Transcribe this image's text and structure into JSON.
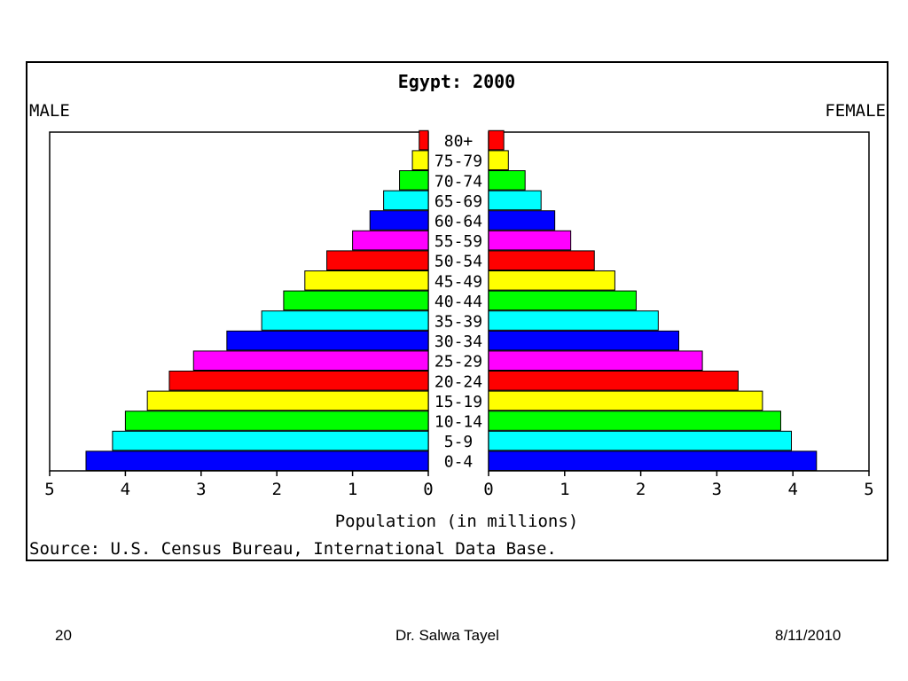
{
  "chart_data": {
    "type": "bar",
    "title": "Egypt: 2000",
    "left_label": "MALE",
    "right_label": "FEMALE",
    "xlabel": "Population (in millions)",
    "source": "Source: U.S. Census Bureau, International Data Base.",
    "xlim": [
      0,
      5
    ],
    "xticks": [
      "5",
      "4",
      "3",
      "2",
      "1",
      "0",
      "0",
      "1",
      "2",
      "3",
      "4",
      "5"
    ],
    "grid": false,
    "categories": [
      "80+",
      "75-79",
      "70-74",
      "65-69",
      "60-64",
      "55-59",
      "50-54",
      "45-49",
      "40-44",
      "35-39",
      "30-34",
      "25-29",
      "20-24",
      "15-19",
      "10-14",
      "5-9",
      "0-4"
    ],
    "series": [
      {
        "name": "MALE",
        "values": [
          0.12,
          0.21,
          0.38,
          0.59,
          0.77,
          1.0,
          1.34,
          1.63,
          1.91,
          2.2,
          2.66,
          3.1,
          3.42,
          3.71,
          4.0,
          4.17,
          4.52
        ]
      },
      {
        "name": "FEMALE",
        "values": [
          0.2,
          0.26,
          0.48,
          0.69,
          0.87,
          1.08,
          1.39,
          1.66,
          1.94,
          2.23,
          2.5,
          2.81,
          3.28,
          3.6,
          3.84,
          3.98,
          4.31
        ]
      }
    ],
    "bar_colors": [
      "#ff0000",
      "#ffff00",
      "#00ff00",
      "#00ffff",
      "#0000ff",
      "#ff00ff",
      "#ff0000",
      "#ffff00",
      "#00ff00",
      "#00ffff",
      "#0000ff",
      "#ff00ff",
      "#ff0000",
      "#ffff00",
      "#00ff00",
      "#00ffff",
      "#0000ff"
    ]
  },
  "footer": {
    "slide_number": "20",
    "author": "Dr. Salwa Tayel",
    "date": "8/11/2010"
  }
}
